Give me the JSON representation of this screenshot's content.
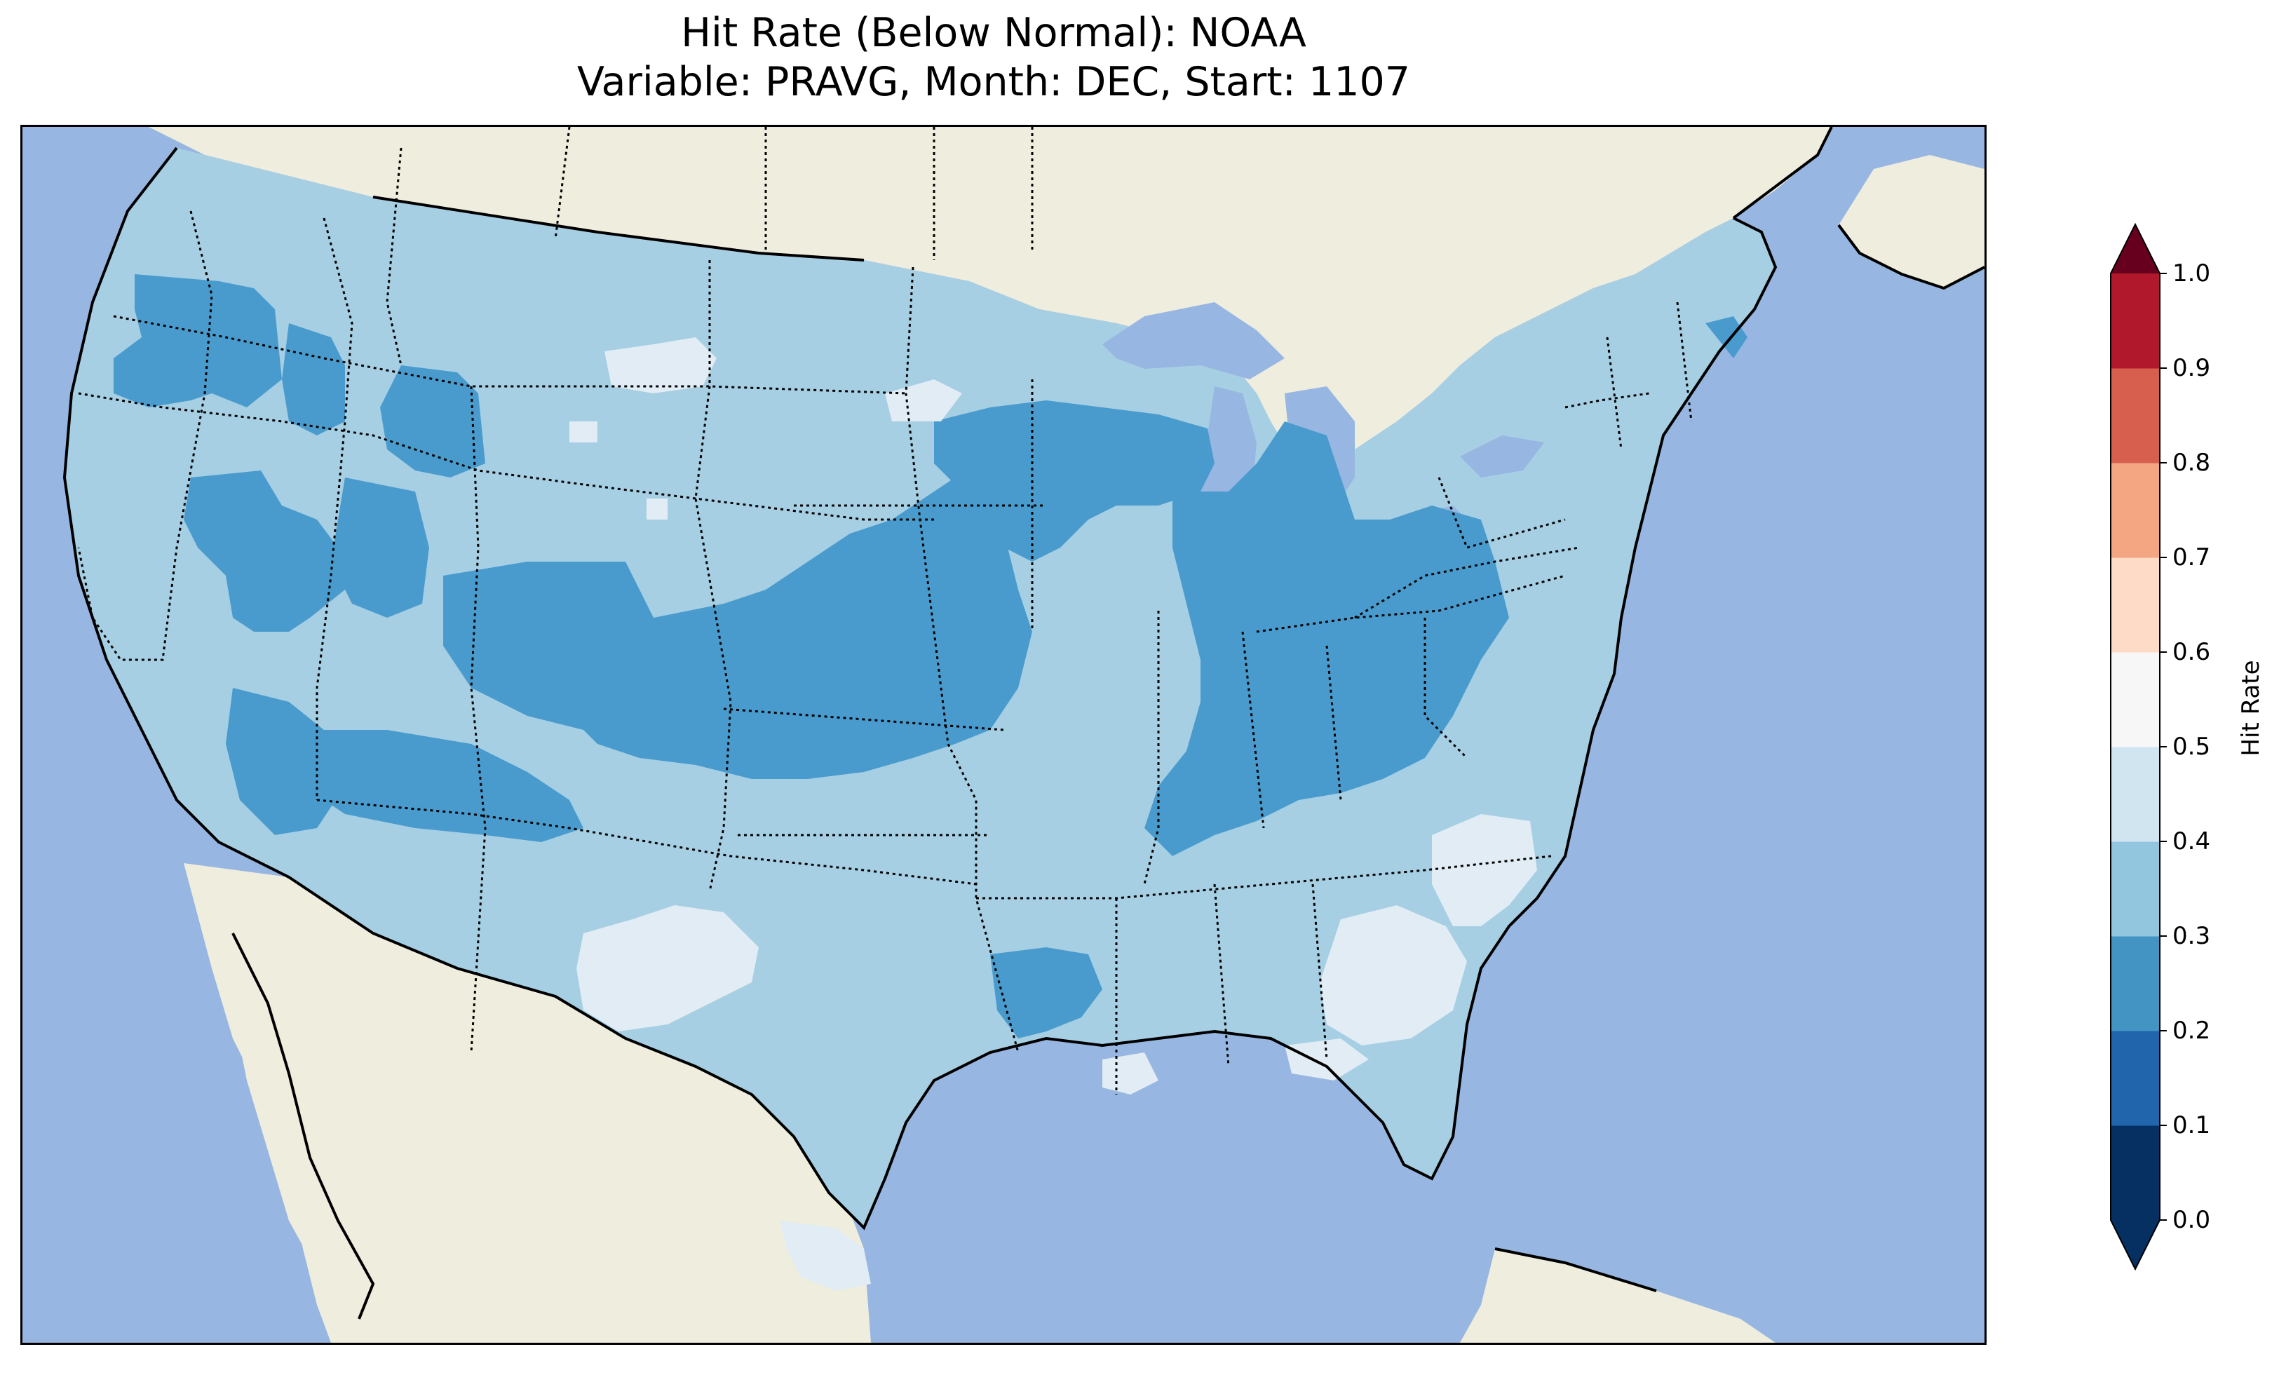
{
  "title": {
    "line1": "Hit Rate (Below Normal): NOAA",
    "line2": "Variable: PRAVG, Month: DEC, Start: 1107"
  },
  "colorbar": {
    "label": "Hit Rate",
    "ticks": [
      "0.0",
      "0.1",
      "0.2",
      "0.3",
      "0.4",
      "0.5",
      "0.6",
      "0.7",
      "0.8",
      "0.9",
      "1.0"
    ],
    "colors": [
      "#053061",
      "#2166ac",
      "#4393c3",
      "#92c5de",
      "#d1e5f0",
      "#f7f7f7",
      "#fddbc7",
      "#f4a582",
      "#d6604d",
      "#b2182b",
      "#67001f"
    ],
    "extend": "both"
  },
  "map": {
    "ocean_color": "#97b6e1",
    "land_color": "#efedde",
    "region": "Contiguous United States",
    "categories": [
      {
        "range": "0.2-0.3",
        "color": "#4a9bcd"
      },
      {
        "range": "0.3-0.4",
        "color": "#a6cfe4"
      },
      {
        "range": "0.4-0.5",
        "color": "#e1ecf4"
      }
    ]
  }
}
